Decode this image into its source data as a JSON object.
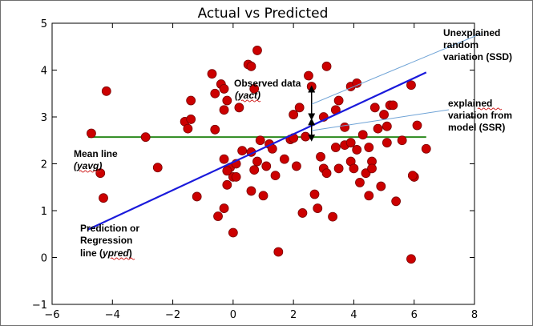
{
  "chart_data": {
    "type": "scatter",
    "title": "Actual vs Predicted",
    "xlabel": "",
    "ylabel": "",
    "xlim": [
      -6,
      8
    ],
    "ylim": [
      -1,
      5
    ],
    "xticks": [
      "−6",
      "−4",
      "−2",
      "0",
      "2",
      "4",
      "6",
      "8"
    ],
    "yticks": [
      "−1",
      "0",
      "1",
      "2",
      "3",
      "4",
      "5"
    ],
    "xtick_values": [
      -6,
      -4,
      -2,
      0,
      2,
      4,
      6,
      8
    ],
    "ytick_values": [
      -1,
      0,
      1,
      2,
      3,
      4,
      5
    ],
    "grid": false,
    "colors": {
      "points": "#cc0000",
      "point_edge": "#7a0000",
      "regression": "#1a1adb",
      "mean": "#2b8a1e",
      "annotation_line": "#6fa3d6"
    },
    "points": [
      [
        -4.7,
        2.65
      ],
      [
        -4.2,
        3.55
      ],
      [
        -4.4,
        1.8
      ],
      [
        -4.3,
        1.27
      ],
      [
        -2.9,
        2.57
      ],
      [
        -2.5,
        1.92
      ],
      [
        -1.6,
        2.9
      ],
      [
        -1.5,
        2.75
      ],
      [
        -1.4,
        3.35
      ],
      [
        -1.4,
        2.95
      ],
      [
        -1.2,
        1.3
      ],
      [
        -0.7,
        3.92
      ],
      [
        -0.6,
        2.73
      ],
      [
        -0.6,
        3.5
      ],
      [
        -0.4,
        3.7
      ],
      [
        -0.3,
        3.6
      ],
      [
        -0.3,
        3.15
      ],
      [
        -0.2,
        3.35
      ],
      [
        -0.5,
        0.88
      ],
      [
        -0.3,
        1.05
      ],
      [
        -0.2,
        1.55
      ],
      [
        -0.1,
        1.92
      ],
      [
        0,
        0.53
      ],
      [
        0,
        1.72
      ],
      [
        0.1,
        1.72
      ],
      [
        0.1,
        2.0
      ],
      [
        -0.3,
        2.1
      ],
      [
        -0.2,
        1.85
      ],
      [
        0.2,
        3.2
      ],
      [
        0.3,
        2.28
      ],
      [
        0.5,
        4.12
      ],
      [
        0.6,
        4.08
      ],
      [
        0.7,
        3.6
      ],
      [
        0.8,
        4.42
      ],
      [
        0.6,
        2.25
      ],
      [
        0.6,
        1.42
      ],
      [
        0.7,
        1.87
      ],
      [
        0.8,
        2.05
      ],
      [
        0.9,
        2.5
      ],
      [
        1.0,
        1.32
      ],
      [
        1.1,
        1.95
      ],
      [
        1.2,
        2.42
      ],
      [
        1.3,
        2.32
      ],
      [
        1.4,
        1.75
      ],
      [
        1.5,
        0.12
      ],
      [
        1.7,
        2.1
      ],
      [
        1.9,
        2.52
      ],
      [
        2.0,
        2.55
      ],
      [
        2.0,
        3.05
      ],
      [
        2.1,
        1.95
      ],
      [
        2.2,
        3.2
      ],
      [
        2.3,
        0.95
      ],
      [
        2.4,
        2.58
      ],
      [
        2.5,
        3.88
      ],
      [
        2.6,
        3.65
      ],
      [
        2.7,
        1.35
      ],
      [
        2.8,
        1.05
      ],
      [
        2.9,
        2.15
      ],
      [
        3.0,
        3.0
      ],
      [
        3.0,
        1.9
      ],
      [
        3.1,
        4.08
      ],
      [
        3.1,
        1.8
      ],
      [
        3.3,
        0.87
      ],
      [
        3.4,
        2.35
      ],
      [
        3.4,
        3.15
      ],
      [
        3.5,
        1.9
      ],
      [
        3.5,
        3.35
      ],
      [
        3.7,
        2.4
      ],
      [
        3.7,
        2.78
      ],
      [
        3.9,
        2.45
      ],
      [
        3.9,
        2.05
      ],
      [
        3.9,
        3.65
      ],
      [
        4.0,
        1.9
      ],
      [
        4.1,
        3.72
      ],
      [
        4.1,
        2.3
      ],
      [
        4.2,
        1.6
      ],
      [
        4.3,
        2.62
      ],
      [
        4.4,
        1.8
      ],
      [
        4.5,
        2.35
      ],
      [
        4.5,
        1.32
      ],
      [
        4.6,
        2.05
      ],
      [
        4.6,
        1.9
      ],
      [
        4.7,
        3.2
      ],
      [
        4.8,
        2.75
      ],
      [
        4.9,
        1.52
      ],
      [
        5.0,
        3.05
      ],
      [
        5.1,
        2.45
      ],
      [
        5.1,
        2.8
      ],
      [
        5.2,
        3.25
      ],
      [
        5.3,
        3.25
      ],
      [
        5.4,
        1.2
      ],
      [
        5.6,
        2.5
      ],
      [
        5.9,
        3.68
      ],
      [
        5.9,
        -0.03
      ],
      [
        6.0,
        1.72
      ],
      [
        6.0,
        1.72
      ],
      [
        6.1,
        2.82
      ],
      [
        6.4,
        2.32
      ],
      [
        5.95,
        1.75
      ]
    ],
    "mean_line": {
      "y": 2.57,
      "x": [
        -4.8,
        6.4
      ]
    },
    "regression_line": {
      "x": [
        -4.8,
        6.4
      ],
      "y": [
        0.6,
        3.95
      ]
    },
    "error_arrows": [
      {
        "x": 2.6,
        "y_from": 3.65,
        "y_to": 2.95
      },
      {
        "x": 2.6,
        "y_from": 2.95,
        "y_to": 2.5
      }
    ],
    "annotations": {
      "observed": {
        "line1": "Observed data",
        "line2": "(yact)"
      },
      "unexplained": {
        "line1": "Unexplained",
        "line2": "random",
        "line3": "variation (SSD)"
      },
      "explained": {
        "line1": "explained",
        "line2": "variation from",
        "line3": "model (SSR)"
      },
      "mean": {
        "line1": "Mean line",
        "line2": "(yavg)"
      },
      "prediction": {
        "line1": "Prediction or",
        "line2": "Regression",
        "line3_prefix": "line (",
        "line3_italic": "ypred",
        "line3_suffix": ")"
      }
    }
  }
}
